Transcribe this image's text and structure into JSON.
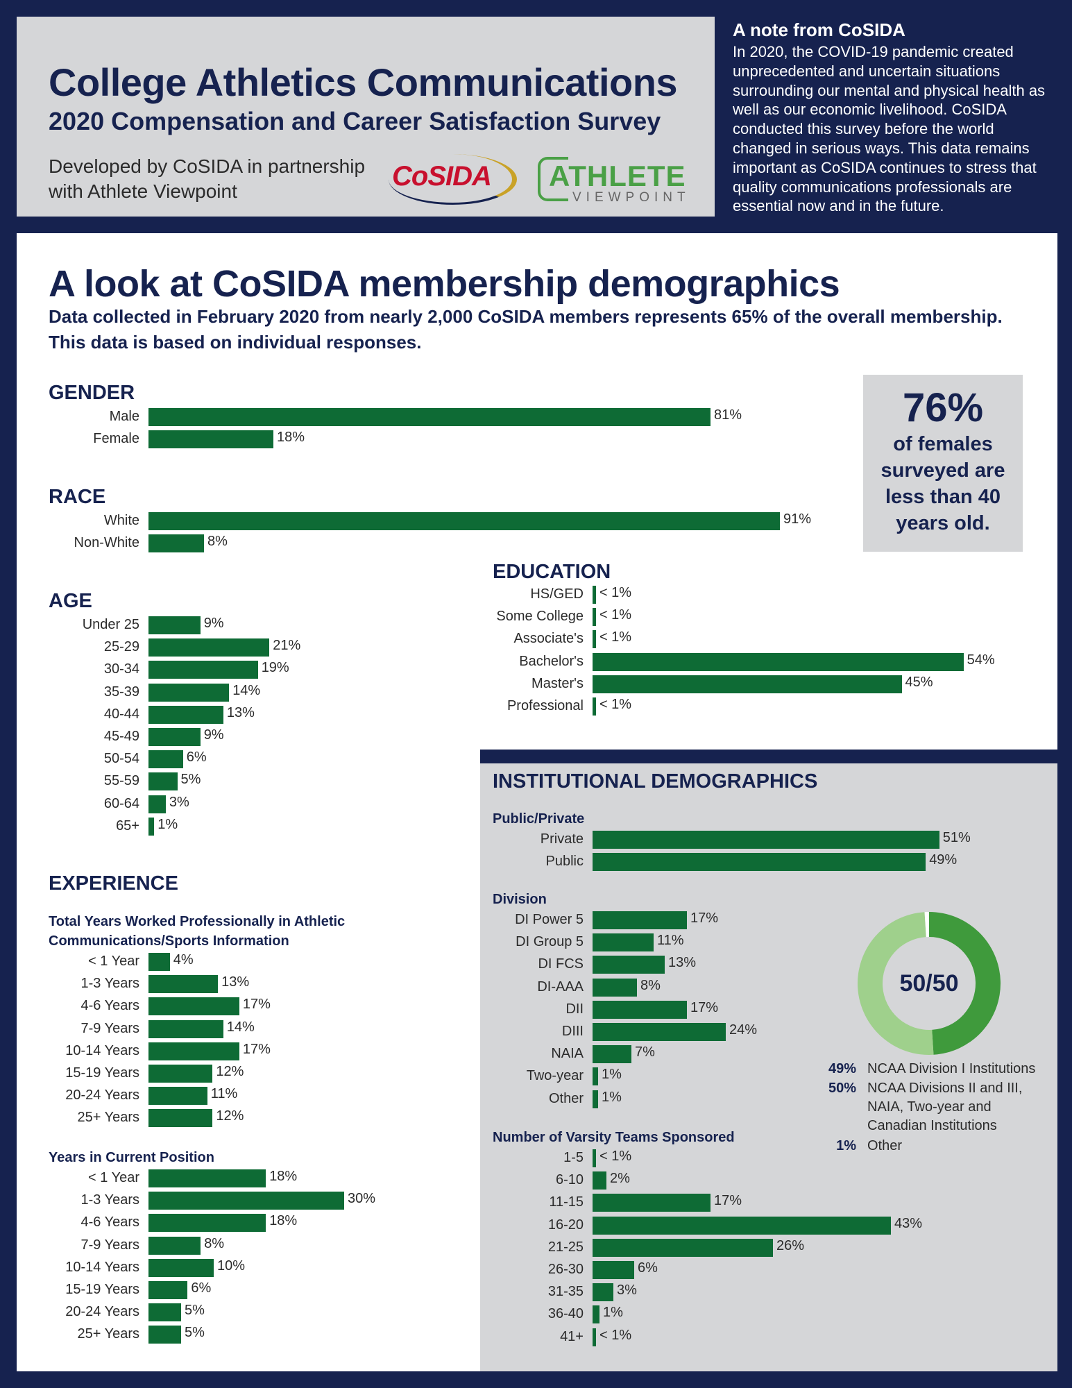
{
  "header": {
    "title": "College Athletics Communications",
    "subtitle": "2020 Compensation and Career Satisfaction Survey",
    "developed_by": "Developed by CoSIDA in partnership with Athlete Viewpoint",
    "logo_cosida": "CoSIDA",
    "logo_athlete": "ATHLETE",
    "logo_viewpoint": "VIEWPOINT"
  },
  "note": {
    "title": "A note from CoSIDA",
    "body": "In 2020, the COVID-19 pandemic created unprecedented and uncertain situations surrounding our mental and physical health as well as our economic livelihood. CoSIDA conducted this survey before the world changed in serious ways. This data remains important as CoSIDA continues to stress that quality communications professionals are essential now and in the future."
  },
  "main": {
    "title": "A look at CoSIDA membership demographics",
    "subtitle": "Data collected in February 2020 from nearly 2,000 CoSIDA members represents 65% of the overall membership. This data is based on individual responses."
  },
  "callout": {
    "pct": "76%",
    "text": "of females surveyed are less than 40 years old."
  },
  "colors": {
    "navy": "#16224f",
    "bar": "#0e6b35",
    "donut_dark": "#3f9a3c",
    "donut_light": "#9fd08c"
  },
  "chart_data": [
    {
      "id": "gender",
      "type": "bar",
      "title": "GENDER",
      "categories": [
        "Male",
        "Female"
      ],
      "values": [
        81,
        18
      ],
      "labels": [
        "81%",
        "18%"
      ]
    },
    {
      "id": "race",
      "type": "bar",
      "title": "RACE",
      "categories": [
        "White",
        "Non-White"
      ],
      "values": [
        91,
        8
      ],
      "labels": [
        "91%",
        "8%"
      ]
    },
    {
      "id": "age",
      "type": "bar",
      "title": "AGE",
      "categories": [
        "Under 25",
        "25-29",
        "30-34",
        "35-39",
        "40-44",
        "45-49",
        "50-54",
        "55-59",
        "60-64",
        "65+"
      ],
      "values": [
        9,
        21,
        19,
        14,
        13,
        9,
        6,
        5,
        3,
        1
      ],
      "labels": [
        "9%",
        "21%",
        "19%",
        "14%",
        "13%",
        "9%",
        "6%",
        "5%",
        "3%",
        "1%"
      ]
    },
    {
      "id": "education",
      "type": "bar",
      "title": "EDUCATION",
      "categories": [
        "HS/GED",
        "Some College",
        "Associate's",
        "Bachelor's",
        "Master's",
        "Professional"
      ],
      "values": [
        0.5,
        0.5,
        0.5,
        54,
        45,
        0.5
      ],
      "labels": [
        "< 1%",
        "< 1%",
        "< 1%",
        "54%",
        "45%",
        "< 1%"
      ]
    },
    {
      "id": "exp_total",
      "type": "bar",
      "title": "Total Years Worked Professionally in Athletic Communications/Sports Information",
      "categories": [
        "< 1 Year",
        "1-3 Years",
        "4-6 Years",
        "7-9 Years",
        "10-14 Years",
        "15-19 Years",
        "20-24 Years",
        "25+ Years"
      ],
      "values": [
        4,
        13,
        17,
        14,
        17,
        12,
        11,
        12
      ],
      "labels": [
        "4%",
        "13%",
        "17%",
        "14%",
        "17%",
        "12%",
        "11%",
        "12%"
      ]
    },
    {
      "id": "exp_current",
      "type": "bar",
      "title": "Years in Current Position",
      "categories": [
        "< 1 Year",
        "1-3 Years",
        "4-6 Years",
        "7-9 Years",
        "10-14 Years",
        "15-19 Years",
        "20-24 Years",
        "25+ Years"
      ],
      "values": [
        18,
        30,
        18,
        8,
        10,
        6,
        5,
        5
      ],
      "labels": [
        "18%",
        "30%",
        "18%",
        "8%",
        "10%",
        "6%",
        "5%",
        "5%"
      ]
    },
    {
      "id": "public_private",
      "type": "bar",
      "title": "Public/Private",
      "categories": [
        "Private",
        "Public"
      ],
      "values": [
        51,
        49
      ],
      "labels": [
        "51%",
        "49%"
      ]
    },
    {
      "id": "division",
      "type": "bar",
      "title": "Division",
      "categories": [
        "DI Power 5",
        "DI Group 5",
        "DI FCS",
        "DI-AAA",
        "DII",
        "DIII",
        "NAIA",
        "Two-year",
        "Other"
      ],
      "values": [
        17,
        11,
        13,
        8,
        17,
        24,
        7,
        1,
        1
      ],
      "labels": [
        "17%",
        "11%",
        "13%",
        "8%",
        "17%",
        "24%",
        "7%",
        "1%",
        "1%"
      ]
    },
    {
      "id": "teams",
      "type": "bar",
      "title": "Number of Varsity Teams Sponsored",
      "categories": [
        "1-5",
        "6-10",
        "11-15",
        "16-20",
        "21-25",
        "26-30",
        "31-35",
        "36-40",
        "41+"
      ],
      "values": [
        0.5,
        2,
        17,
        43,
        26,
        6,
        3,
        1,
        0.5
      ],
      "labels": [
        "< 1%",
        "2%",
        "17%",
        "43%",
        "26%",
        "6%",
        "3%",
        "1%",
        "< 1%"
      ]
    },
    {
      "id": "division_split",
      "type": "pie",
      "title": "50/50",
      "categories": [
        "NCAA Division I Institutions",
        "NCAA Divisions II and III, NAIA, Two-year and Canadian Institutions",
        "Other"
      ],
      "values": [
        49,
        50,
        1
      ],
      "labels": [
        "49%",
        "50%",
        "1%"
      ]
    }
  ],
  "sections": {
    "experience": "EXPERIENCE",
    "institutional": "INSTITUTIONAL DEMOGRAPHICS"
  }
}
